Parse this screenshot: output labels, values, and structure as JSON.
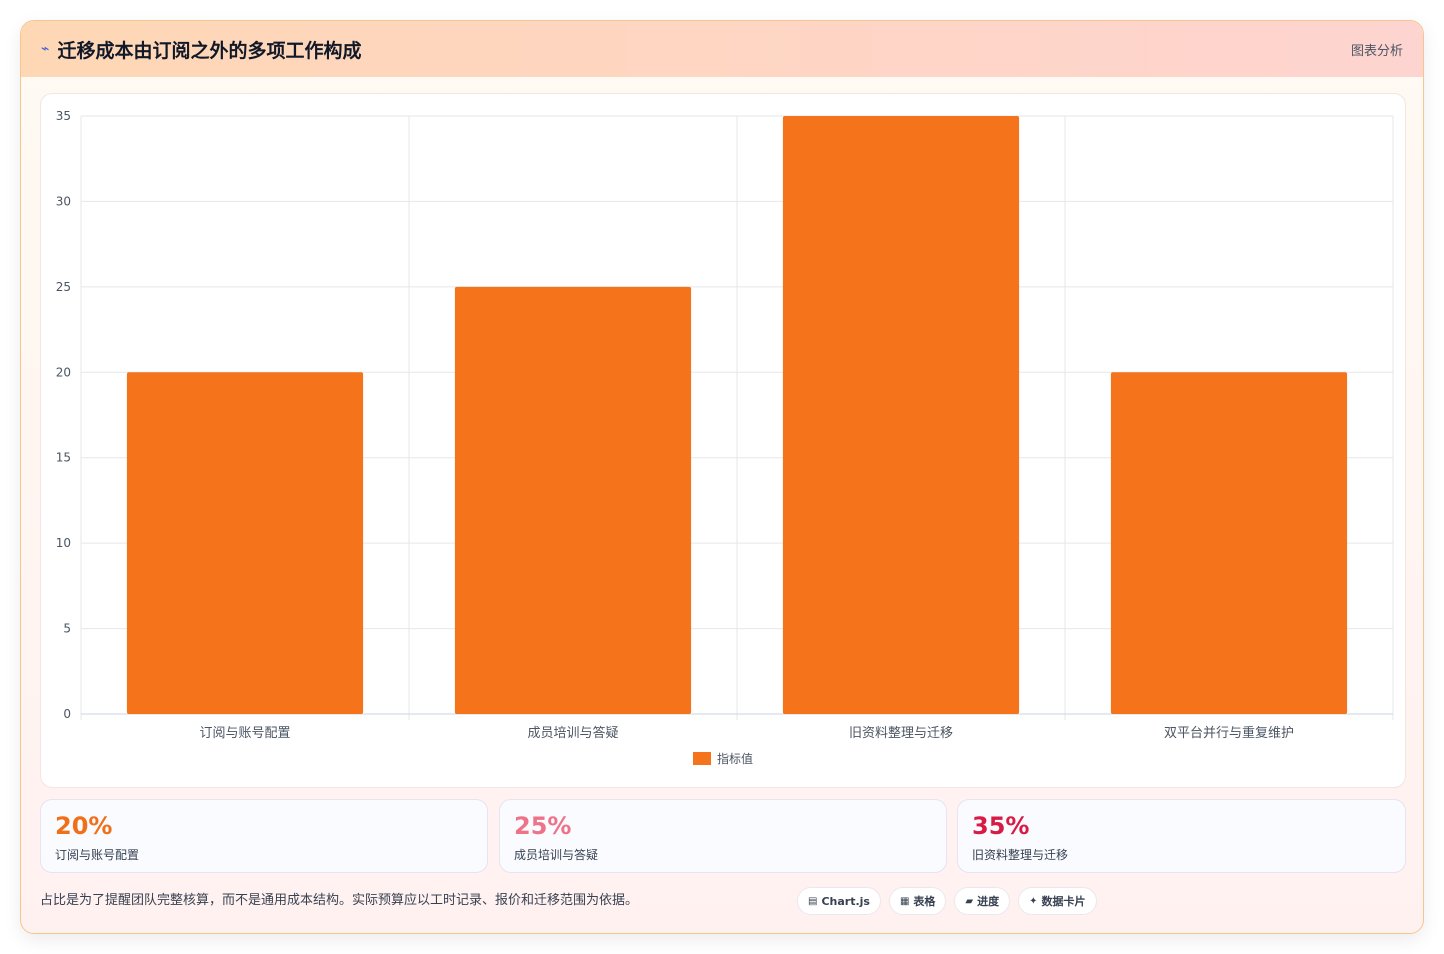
{
  "header": {
    "title": "迁移成本由订阅之外的多项工作构成",
    "tag": "图表分析",
    "icon": "trend-icon"
  },
  "chart_data": {
    "type": "bar",
    "categories": [
      "订阅与账号配置",
      "成员培训与答疑",
      "旧资料整理与迁移",
      "双平台并行与重复维护"
    ],
    "series": [
      {
        "name": "指标值",
        "values": [
          20,
          25,
          35,
          20
        ],
        "color": "#f5731a"
      }
    ],
    "ylim": [
      0,
      35
    ],
    "yticks": [
      0,
      5,
      10,
      15,
      20,
      25,
      30,
      35
    ],
    "grid": true,
    "legend": "bottom"
  },
  "stats": [
    {
      "value": "20%",
      "label": "订阅与账号配置",
      "color": "#f07019"
    },
    {
      "value": "25%",
      "label": "成员培训与答疑",
      "color": "#ef7388"
    },
    {
      "value": "35%",
      "label": "旧资料整理与迁移",
      "color": "#d81b46"
    }
  ],
  "footnote": "占比是为了提醒团队完整核算，而不是通用成本结构。实际预算应以工时记录、报价和迁移范围为依据。",
  "chips": [
    {
      "icon": "▤",
      "label": "Chart.js"
    },
    {
      "icon": "▦",
      "label": "表格"
    },
    {
      "icon": "▰",
      "label": "进度"
    },
    {
      "icon": "✦",
      "label": "数据卡片"
    }
  ]
}
